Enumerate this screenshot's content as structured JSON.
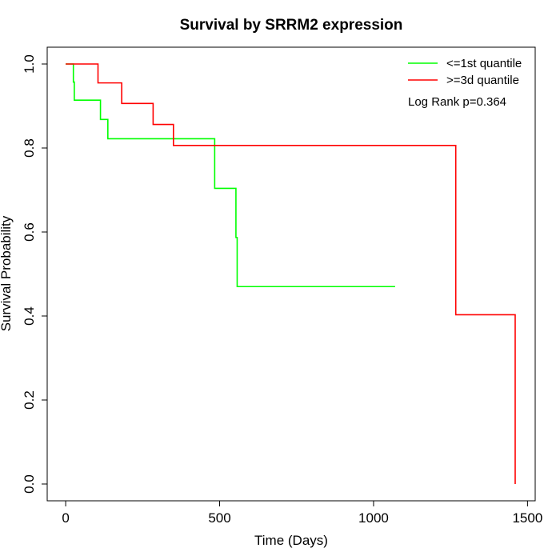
{
  "chart_data": {
    "type": "line",
    "title": "Survival by SRRM2 expression",
    "xlabel": "Time (Days)",
    "ylabel": "Survival Probability",
    "xlim": [
      -60,
      1525
    ],
    "ylim": [
      -0.04,
      1.04
    ],
    "x_ticks": [
      0,
      500,
      1000,
      1500
    ],
    "x_tick_labels": [
      "0",
      "500",
      "1000",
      "1500"
    ],
    "y_ticks": [
      0.0,
      0.2,
      0.4,
      0.6,
      0.8,
      1.0
    ],
    "y_tick_labels": [
      "0.0",
      "0.2",
      "0.4",
      "0.6",
      "0.8",
      "1.0"
    ],
    "grid": false,
    "legend_position": "top-right",
    "annotation": "Log Rank p=0.364",
    "series": [
      {
        "name": "<=1st quantile",
        "color": "#00ff00",
        "steps": [
          [
            0,
            1.0
          ],
          [
            25,
            0.957
          ],
          [
            28,
            0.914
          ],
          [
            113,
            0.868
          ],
          [
            137,
            0.822
          ],
          [
            484,
            0.704
          ],
          [
            553,
            0.587
          ],
          [
            557,
            0.47
          ],
          [
            1070,
            0.47
          ]
        ]
      },
      {
        "name": ">=3d quantile",
        "color": "#ff0000",
        "steps": [
          [
            0,
            1.0
          ],
          [
            105,
            0.955
          ],
          [
            182,
            0.906
          ],
          [
            284,
            0.856
          ],
          [
            350,
            0.806
          ],
          [
            1267,
            0.403
          ],
          [
            1460,
            0.0
          ]
        ]
      }
    ]
  }
}
